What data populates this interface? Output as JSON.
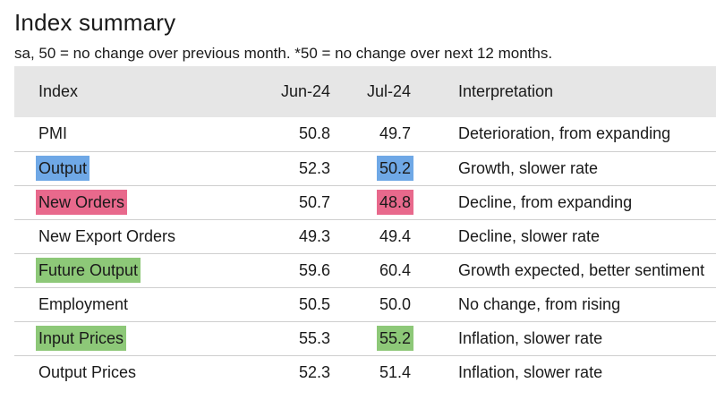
{
  "title": "Index summary",
  "subtitle": "sa, 50 = no change over previous month. *50 = no change over next 12 months.",
  "colors": {
    "header_bg": "#e6e6e6",
    "blue": "#6fa8e6",
    "pink": "#e8698c",
    "green": "#8dc878"
  },
  "table": {
    "headers": {
      "index": "Index",
      "jun": "Jun-24",
      "jul": "Jul-24",
      "interp": "Interpretation"
    },
    "rows": [
      {
        "index": "PMI",
        "jun": "50.8",
        "jul": "49.7",
        "interp": "Deterioration, from expanding",
        "index_hl": "",
        "jul_hl": ""
      },
      {
        "index": "Output",
        "jun": "52.3",
        "jul": "50.2",
        "interp": "Growth, slower rate",
        "index_hl": "#6fa8e6",
        "jul_hl": "#6fa8e6"
      },
      {
        "index": "New Orders",
        "jun": "50.7",
        "jul": "48.8",
        "interp": "Decline, from expanding",
        "index_hl": "#e8698c",
        "jul_hl": "#e8698c"
      },
      {
        "index": "New Export Orders",
        "jun": "49.3",
        "jul": "49.4",
        "interp": "Decline, slower rate",
        "index_hl": "",
        "jul_hl": ""
      },
      {
        "index": "Future Output",
        "jun": "59.6",
        "jul": "60.4",
        "interp": "Growth expected, better sentiment",
        "index_hl": "#8dc878",
        "jul_hl": ""
      },
      {
        "index": "Employment",
        "jun": "50.5",
        "jul": "50.0",
        "interp": "No change, from rising",
        "index_hl": "",
        "jul_hl": ""
      },
      {
        "index": "Input Prices",
        "jun": "55.3",
        "jul": "55.2",
        "interp": "Inflation, slower rate",
        "index_hl": "#8dc878",
        "jul_hl": "#8dc878"
      },
      {
        "index": "Output Prices",
        "jun": "52.3",
        "jul": "51.4",
        "interp": "Inflation, slower rate",
        "index_hl": "",
        "jul_hl": ""
      }
    ]
  }
}
